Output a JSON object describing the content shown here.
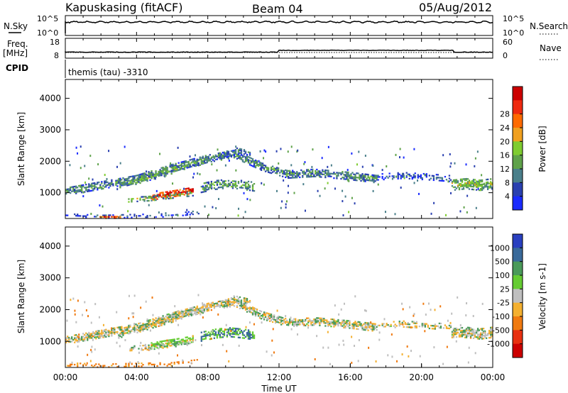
{
  "header": {
    "station": "Kapuskasing (fitACF)",
    "beam": "Beam 04",
    "date": "05/Aug/2012"
  },
  "params": {
    "nsky_label": "N.Sky",
    "nsky_ticks": [
      "10^5",
      "10^0"
    ],
    "nsearch_label": "N.Search",
    "nsearch_ticks": [
      "10^5",
      "10^0"
    ],
    "freq_label": "Freq.",
    "freq_unit": "[MHz]",
    "freq_ticks": [
      "18",
      "8"
    ],
    "nave_label": "Nave",
    "nave_ticks": [
      "60",
      "0"
    ],
    "cpid_label": "CPID",
    "cpid_text": "themis (tau) -3310"
  },
  "colors": {
    "power_scale": [
      "#1a2bff",
      "#2a40b0",
      "#4a7f8a",
      "#5fa24a",
      "#7fcc30",
      "#f0a020",
      "#ff6a00",
      "#ee2a10",
      "#cc0000"
    ],
    "velocity_scale": [
      "#2a40c0",
      "#3a6a9a",
      "#4a9a5a",
      "#66cc33",
      "#bfbfbf",
      "#f4b030",
      "#f07a10",
      "#e83010",
      "#cc0000"
    ],
    "ground_scatter": "#bfbfbf"
  },
  "chart_data": [
    {
      "type": "heatmap",
      "name": "power-panel",
      "ylabel": "Slant Range [km]",
      "yticks": [
        "1000",
        "2000",
        "3000",
        "4000"
      ],
      "ylim": [
        180,
        4600
      ],
      "xlim": [
        0,
        24
      ],
      "colorbar_label": "Power [dB]",
      "colorbar_ticks": [
        "4",
        "8",
        "12",
        "16",
        "20",
        "24",
        "28"
      ],
      "crange": [
        0,
        30
      ],
      "bands": [
        {
          "t": [
            0.0,
            2.0,
            4.0,
            6.0,
            8.0,
            9.5,
            11.0,
            12.5,
            14.0,
            16.0,
            17.5
          ],
          "r": [
            1050,
            1250,
            1450,
            1800,
            2100,
            2250,
            1850,
            1600,
            1650,
            1550,
            1450
          ],
          "w": 130,
          "p": 10,
          "d": 0.8
        },
        {
          "t": [
            3.0,
            4.5,
            6.0,
            7.0,
            7.8
          ],
          "r": [
            1200,
            1450,
            1700,
            1900,
            2000
          ],
          "w": 90,
          "p": 12,
          "d": 0.65
        },
        {
          "t": [
            4.8,
            5.6,
            6.4,
            7.2
          ],
          "r": [
            860,
            930,
            1000,
            1080
          ],
          "w": 90,
          "p": 26,
          "d": 0.92
        },
        {
          "t": [
            3.5,
            4.8,
            6.0,
            7.2
          ],
          "r": [
            780,
            820,
            900,
            980
          ],
          "w": 70,
          "p": 14,
          "d": 0.55
        },
        {
          "t": [
            7.6,
            8.4,
            9.2,
            10.0,
            10.6
          ],
          "r": [
            1150,
            1250,
            1300,
            1250,
            1200
          ],
          "w": 140,
          "p": 12,
          "d": 0.6
        },
        {
          "t": [
            8.8,
            9.6,
            10.4
          ],
          "r": [
            2200,
            2350,
            2250
          ],
          "w": 110,
          "p": 8,
          "d": 0.55
        },
        {
          "t": [
            21.7,
            22.5,
            23.3,
            24.0
          ],
          "r": [
            1250,
            1300,
            1250,
            1300
          ],
          "w": 170,
          "p": 14,
          "d": 0.8
        },
        {
          "t": [
            17.5,
            19.0,
            20.5,
            21.7
          ],
          "r": [
            1500,
            1550,
            1500,
            1450
          ],
          "w": 90,
          "p": 6,
          "d": 0.45
        },
        {
          "t": [
            0.0,
            2.0,
            4.0,
            6.0,
            7.5
          ],
          "r": [
            300,
            250,
            280,
            300,
            400
          ],
          "w": 60,
          "p": 6,
          "d": 0.35
        },
        {
          "t": [
            1.8,
            2.5,
            3.2
          ],
          "r": [
            230,
            230,
            240
          ],
          "w": 40,
          "p": 24,
          "d": 0.6
        }
      ]
    },
    {
      "type": "heatmap",
      "name": "velocity-panel",
      "ylabel": "Slant Range [km]",
      "yticks": [
        "1000",
        "2000",
        "3000",
        "4000"
      ],
      "ylim": [
        180,
        4600
      ],
      "xlim": [
        0,
        24
      ],
      "xlabel": "Time UT",
      "xticks": [
        "00:00",
        "04:00",
        "08:00",
        "12:00",
        "16:00",
        "20:00",
        "00:00"
      ],
      "colorbar_label": "Velocity [m s-1]",
      "colorbar_ticks": [
        "1000",
        "500",
        "100",
        "25",
        "-25",
        "-100",
        "-500",
        "-1000"
      ],
      "bands": [
        {
          "t": [
            0.0,
            2.0,
            4.0,
            6.0,
            8.0,
            9.5,
            11.0,
            12.5,
            14.0,
            16.0,
            17.5
          ],
          "r": [
            1050,
            1250,
            1450,
            1800,
            2100,
            2250,
            1850,
            1600,
            1650,
            1550,
            1450
          ],
          "w": 130,
          "v": 0,
          "d": 0.85
        },
        {
          "t": [
            3.0,
            4.5,
            6.0,
            7.0,
            7.8
          ],
          "r": [
            1200,
            1450,
            1700,
            1900,
            2000
          ],
          "w": 90,
          "v": 0,
          "d": 0.7
        },
        {
          "t": [
            4.8,
            5.6,
            6.4,
            7.2
          ],
          "r": [
            860,
            930,
            1000,
            1080
          ],
          "w": 90,
          "v": 180,
          "d": 0.85
        },
        {
          "t": [
            3.5,
            4.8,
            6.0,
            7.2
          ],
          "r": [
            780,
            820,
            900,
            980
          ],
          "w": 70,
          "v": 0,
          "d": 0.6
        },
        {
          "t": [
            7.6,
            8.4,
            9.2,
            10.0,
            10.6
          ],
          "r": [
            1150,
            1250,
            1300,
            1250,
            1200
          ],
          "w": 140,
          "v": 250,
          "d": 0.7
        },
        {
          "t": [
            8.8,
            9.6,
            10.4
          ],
          "r": [
            2200,
            2350,
            2250
          ],
          "w": 110,
          "v": 0,
          "d": 0.6
        },
        {
          "t": [
            21.7,
            22.5,
            23.3,
            24.0
          ],
          "r": [
            1250,
            1300,
            1250,
            1300
          ],
          "w": 170,
          "v": 0,
          "d": 0.85
        },
        {
          "t": [
            17.5,
            19.0,
            20.5,
            21.7
          ],
          "r": [
            1500,
            1550,
            1500,
            1450
          ],
          "w": 90,
          "v": 0,
          "d": 0.45
        },
        {
          "t": [
            0.0,
            2.0,
            4.0,
            6.0,
            7.5
          ],
          "r": [
            300,
            250,
            280,
            300,
            400
          ],
          "w": 60,
          "v": -150,
          "d": 0.35
        }
      ]
    }
  ]
}
